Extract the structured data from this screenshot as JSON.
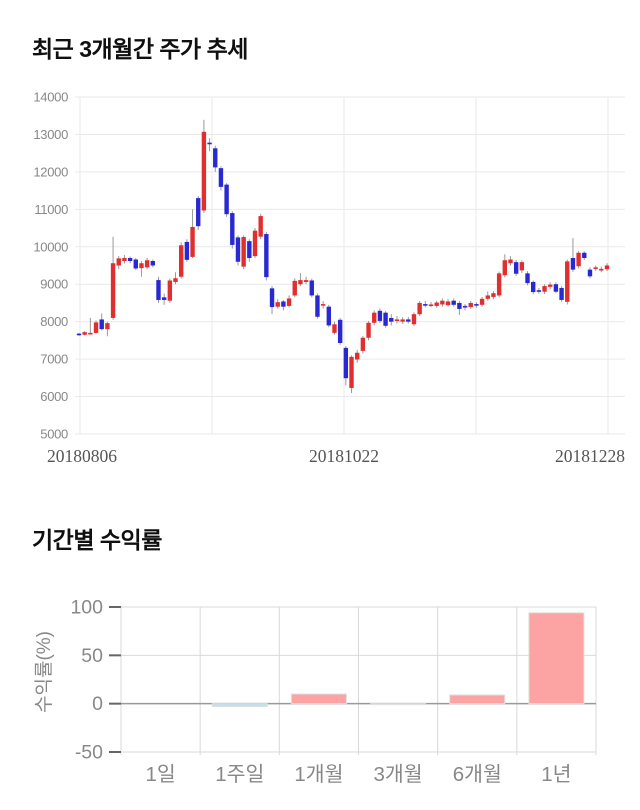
{
  "chart_data": [
    {
      "type": "candlestick",
      "title": "최근 3개월간 주가 추세",
      "xlabel": "",
      "ylabel": "",
      "ylim": [
        5000,
        14000
      ],
      "yticks": [
        14000,
        13000,
        12000,
        11000,
        10000,
        9000,
        8000,
        7000,
        6000,
        5000
      ],
      "x_tick_labels": [
        "20180806",
        "20181022",
        "20181228"
      ],
      "grid": true,
      "legend": false,
      "up_color": "#e12f2f",
      "down_color": "#2929d3",
      "wick_color": "#999999",
      "grid_color": "#e9e9e9",
      "tick_text_color": "#888888",
      "date_text_color": "#555555",
      "candles": [
        [
          7680,
          7700,
          7620,
          7650
        ],
        [
          7650,
          7750,
          7630,
          7720
        ],
        [
          7690,
          8100,
          7660,
          7700
        ],
        [
          7700,
          8030,
          7680,
          7980
        ],
        [
          8060,
          8220,
          7770,
          7800
        ],
        [
          7800,
          8000,
          7610,
          7960
        ],
        [
          8100,
          10270,
          8050,
          9560
        ],
        [
          9500,
          9750,
          9400,
          9690
        ],
        [
          9620,
          9780,
          9550,
          9700
        ],
        [
          9700,
          9740,
          9560,
          9620
        ],
        [
          9660,
          9700,
          9380,
          9420
        ],
        [
          9430,
          9620,
          9200,
          9560
        ],
        [
          9450,
          9700,
          9400,
          9640
        ],
        [
          9620,
          9660,
          9450,
          9500
        ],
        [
          9110,
          9200,
          8500,
          8580
        ],
        [
          8650,
          8750,
          8450,
          8580
        ],
        [
          8560,
          9150,
          8500,
          9100
        ],
        [
          9060,
          9320,
          9000,
          9160
        ],
        [
          9200,
          10120,
          9150,
          10040
        ],
        [
          10130,
          10200,
          9600,
          9650
        ],
        [
          9730,
          11000,
          9700,
          10530
        ],
        [
          11300,
          11350,
          10450,
          10550
        ],
        [
          10970,
          13390,
          10900,
          13070
        ],
        [
          12780,
          12900,
          12550,
          12740
        ],
        [
          12630,
          12700,
          12000,
          12120
        ],
        [
          12100,
          12150,
          11500,
          11600
        ],
        [
          11660,
          11700,
          10800,
          10870
        ],
        [
          10900,
          10950,
          9950,
          10050
        ],
        [
          10250,
          10300,
          9500,
          9600
        ],
        [
          9470,
          10300,
          9400,
          10260
        ],
        [
          10150,
          10200,
          9600,
          9700
        ],
        [
          9750,
          10500,
          9700,
          10430
        ],
        [
          10270,
          10880,
          10200,
          10820
        ],
        [
          10340,
          10400,
          9100,
          9190
        ],
        [
          8890,
          8950,
          8200,
          8390
        ],
        [
          8400,
          8600,
          8350,
          8520
        ],
        [
          8540,
          8580,
          8300,
          8400
        ],
        [
          8420,
          8700,
          8380,
          8620
        ],
        [
          8700,
          9160,
          8650,
          9090
        ],
        [
          9000,
          9300,
          8950,
          9110
        ],
        [
          9060,
          9200,
          9000,
          9110
        ],
        [
          9100,
          9150,
          8650,
          8700
        ],
        [
          8700,
          8750,
          8080,
          8130
        ],
        [
          8440,
          8550,
          8350,
          8470
        ],
        [
          8400,
          8450,
          7850,
          7900
        ],
        [
          7700,
          8000,
          7650,
          7930
        ],
        [
          8050,
          8100,
          7380,
          7430
        ],
        [
          7300,
          7350,
          6300,
          6490
        ],
        [
          6230,
          7100,
          6095,
          7060
        ],
        [
          6990,
          7250,
          6900,
          7170
        ],
        [
          7220,
          7620,
          7150,
          7570
        ],
        [
          7570,
          8020,
          7500,
          7970
        ],
        [
          7970,
          8300,
          7900,
          8240
        ],
        [
          8290,
          8350,
          7960,
          8020
        ],
        [
          8240,
          8280,
          7840,
          7890
        ],
        [
          8100,
          8200,
          7900,
          8000
        ],
        [
          8030,
          8150,
          7950,
          8060
        ],
        [
          8000,
          8120,
          7940,
          8060
        ],
        [
          8060,
          8130,
          7950,
          8000
        ],
        [
          7930,
          8250,
          7880,
          8200
        ],
        [
          8200,
          8550,
          8150,
          8500
        ],
        [
          8470,
          8550,
          8380,
          8440
        ],
        [
          8440,
          8530,
          8390,
          8460
        ],
        [
          8420,
          8560,
          8370,
          8510
        ],
        [
          8460,
          8620,
          8400,
          8560
        ],
        [
          8440,
          8600,
          8400,
          8540
        ],
        [
          8560,
          8620,
          8400,
          8450
        ],
        [
          8500,
          8550,
          8180,
          8340
        ],
        [
          8420,
          8470,
          8300,
          8380
        ],
        [
          8390,
          8550,
          8340,
          8500
        ],
        [
          8470,
          8520,
          8370,
          8430
        ],
        [
          8450,
          8660,
          8400,
          8610
        ],
        [
          8610,
          8810,
          8560,
          8700
        ],
        [
          8660,
          8820,
          8600,
          8760
        ],
        [
          8700,
          9340,
          8650,
          9290
        ],
        [
          9240,
          9800,
          9180,
          9640
        ],
        [
          9560,
          9750,
          9500,
          9660
        ],
        [
          9590,
          9650,
          9220,
          9280
        ],
        [
          9370,
          9640,
          9300,
          9590
        ],
        [
          9290,
          9350,
          8970,
          9030
        ],
        [
          9060,
          9100,
          8730,
          8790
        ],
        [
          8840,
          8900,
          8750,
          8810
        ],
        [
          8800,
          9000,
          8740,
          8950
        ],
        [
          8930,
          9050,
          8860,
          8990
        ],
        [
          9000,
          9050,
          8760,
          8800
        ],
        [
          8900,
          8950,
          8530,
          8580
        ],
        [
          8530,
          9660,
          8460,
          9610
        ],
        [
          9700,
          10230,
          9330,
          9390
        ],
        [
          9480,
          9890,
          9420,
          9840
        ],
        [
          9840,
          9880,
          9650,
          9700
        ],
        [
          9390,
          9450,
          9160,
          9210
        ],
        [
          9430,
          9500,
          9360,
          9450
        ],
        [
          9390,
          9470,
          9320,
          9410
        ],
        [
          9400,
          9560,
          9350,
          9500
        ]
      ]
    },
    {
      "type": "bar",
      "title": "기간별 수익률",
      "xlabel": "",
      "ylabel": "수익률(%)",
      "categories": [
        "1일",
        "1주일",
        "1개월",
        "3개월",
        "6개월",
        "1년"
      ],
      "values": [
        0,
        -3,
        10,
        -1,
        9,
        94
      ],
      "ylim": [
        -50,
        100
      ],
      "yticks": [
        100,
        50,
        0,
        -50
      ],
      "grid": true,
      "legend": false,
      "positive_color": "#fca3a3",
      "negative_color": "#b9e3ed",
      "bar_border_color": "#e0e0e0",
      "grid_color": "#d9d9d9",
      "zero_line_color": "#999999",
      "axis_tick_color": "#666666",
      "text_color": "#888888"
    }
  ]
}
